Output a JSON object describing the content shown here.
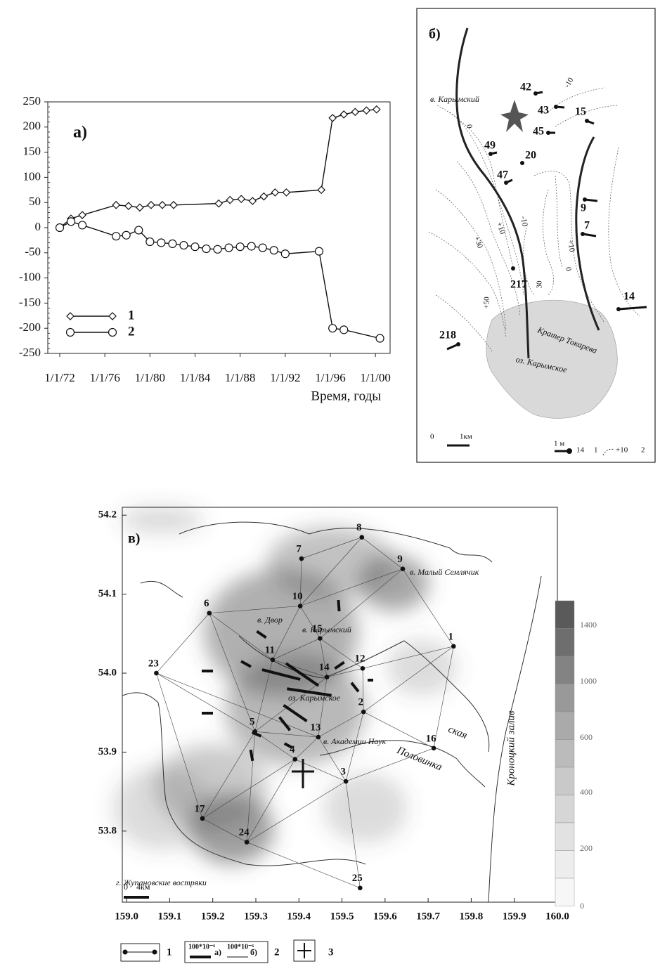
{
  "chart_data": [
    {
      "type": "line",
      "xlabel": "Время, годы",
      "label": "а)",
      "xlim": [
        1970.94,
        2001.3
      ],
      "ylim": [
        -250,
        250
      ],
      "xticks": [
        {
          "value": 1972,
          "label": "1/1/72"
        },
        {
          "value": 1976,
          "label": "1/1/76"
        },
        {
          "value": 1980,
          "label": "1/1/80"
        },
        {
          "value": 1984,
          "label": "1/1/84"
        },
        {
          "value": 1988,
          "label": "1/1/88"
        },
        {
          "value": 1992,
          "label": "1/1/92"
        },
        {
          "value": 1996,
          "label": "1/1/96"
        },
        {
          "value": 2000,
          "label": "1/1/00"
        }
      ],
      "yticks": [
        -250,
        -200,
        -150,
        -100,
        -50,
        0,
        50,
        100,
        150,
        200,
        250
      ],
      "series": [
        {
          "name": "1",
          "marker": "diamond",
          "color": "#111",
          "x": [
            1972,
            1973,
            1974,
            1977,
            1978.1,
            1979.1,
            1980.1,
            1981.1,
            1982.1,
            1986.1,
            1987.1,
            1988.1,
            1989.1,
            1990.1,
            1991.1,
            1992.1,
            1995.2,
            1996.2,
            1997.2,
            1998.2,
            1999.2,
            2000.1
          ],
          "values": [
            0,
            18,
            25,
            45,
            43,
            40,
            45,
            45,
            45,
            48,
            55,
            57,
            53,
            62,
            70,
            70,
            75,
            218,
            225,
            230,
            233,
            235
          ]
        },
        {
          "name": "2",
          "marker": "circle",
          "color": "#111",
          "x": [
            1972,
            1973,
            1974,
            1977,
            1977.9,
            1979,
            1980,
            1981,
            1982,
            1983,
            1984,
            1985,
            1986,
            1987,
            1988,
            1989,
            1990,
            1991,
            1992,
            1995,
            1996.2,
            1997.2,
            2000.4
          ],
          "values": [
            0,
            12,
            5,
            -17,
            -15,
            -5,
            -28,
            -30,
            -32,
            -35,
            -38,
            -42,
            -43,
            -40,
            -38,
            -37,
            -40,
            -45,
            -52,
            -47,
            -200,
            -203,
            -220
          ]
        }
      ]
    },
    {
      "type": "scatter",
      "label": "в)",
      "xlim": [
        158.99,
        160.0
      ],
      "ylim": [
        53.71,
        54.21
      ],
      "xticks": [
        {
          "value": 159.0,
          "label": "159.0"
        },
        159.1,
        159.2,
        159.3,
        159.4,
        159.5,
        159.6,
        159.7,
        159.8,
        159.9,
        {
          "value": 160.0,
          "label": "160.0"
        }
      ],
      "yticks": [
        {
          "value": 53.8,
          "label": "53.8"
        },
        53.9,
        {
          "value": 54.0,
          "label": "54.0"
        },
        54.1,
        54.2
      ],
      "labels": [
        "1",
        "2",
        "3",
        "4",
        "5",
        "6",
        "7",
        "8",
        "9",
        "10",
        "11",
        "12",
        "13",
        "14",
        "15",
        "16",
        "17",
        "23",
        "24",
        "25"
      ],
      "x": [
        159.759,
        159.55,
        159.509,
        159.391,
        159.298,
        159.192,
        159.406,
        159.546,
        159.641,
        159.403,
        159.339,
        159.548,
        159.445,
        159.465,
        159.449,
        159.713,
        159.176,
        159.069,
        159.279,
        159.542
      ],
      "y": [
        54.034,
        53.951,
        53.863,
        53.891,
        53.926,
        54.076,
        54.145,
        54.172,
        54.132,
        54.085,
        54.017,
        54.006,
        53.919,
        53.995,
        54.044,
        53.905,
        53.816,
        54.0,
        53.786,
        53.728
      ],
      "places": [
        "в. Малый Семлячик",
        "в. Двор",
        "в. Карымский",
        "оз. Карымское",
        "в. Академии Наук",
        "Половинка",
        "ская",
        "Кроноцкий залив",
        "г. Жупановские востряки"
      ],
      "scale": [
        "0",
        "4км"
      ],
      "colorbar": [
        "1400",
        "1000",
        "600",
        "400",
        "200",
        "0"
      ],
      "legend": [
        "1",
        "100*10⁻⁶",
        "а)",
        "100*10⁻⁶",
        "б)",
        "2",
        "3"
      ]
    }
  ],
  "map_b": {
    "label": "б)",
    "volcano": "в. Карымский",
    "stations": [
      "42",
      "43",
      "15",
      "45",
      "49",
      "20",
      "47",
      "9",
      "7",
      "217",
      "14",
      "218"
    ],
    "contours": [
      "-10",
      "0",
      "+10",
      "+30",
      "-10",
      "+10",
      "0",
      "30",
      "+50"
    ],
    "crater": "Кратер Токарева",
    "lake": "оз. Карымское",
    "scale": [
      "0",
      "1км"
    ],
    "legend": [
      "1 м",
      "14",
      "1",
      "+10",
      "2"
    ]
  }
}
